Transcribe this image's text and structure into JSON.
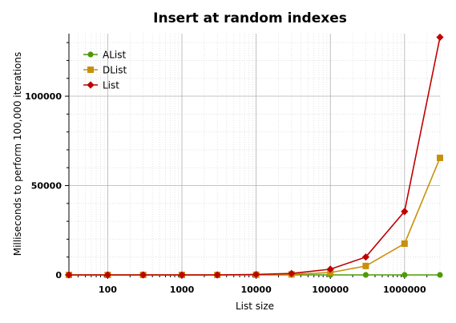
{
  "chart_data": {
    "type": "line",
    "title": "Insert at random indexes",
    "xlabel": "List size",
    "ylabel": "Milliseconds to perform 100,000 iterations",
    "x_scale": "log",
    "xlim": [
      30,
      3000000
    ],
    "ylim": [
      0,
      135000
    ],
    "x_ticks": [
      100,
      1000,
      10000,
      100000,
      1000000
    ],
    "x_tick_labels": [
      "100",
      "1000",
      "10000",
      "100000",
      "1000000"
    ],
    "y_ticks": [
      0,
      50000,
      100000
    ],
    "y_tick_labels": [
      "0",
      "50000",
      "100000"
    ],
    "grid": true,
    "legend_position": "top-left",
    "x": [
      30,
      100,
      300,
      1000,
      3000,
      10000,
      30000,
      100000,
      300000,
      1000000,
      3000000
    ],
    "series": [
      {
        "name": "AList",
        "color": "#4e9a06",
        "marker": "circle",
        "values": [
          0,
          0,
          0,
          0,
          0,
          0,
          0,
          0,
          0,
          0,
          0
        ]
      },
      {
        "name": "DList",
        "color": "#c8900a",
        "marker": "square",
        "values": [
          0,
          0,
          0,
          0,
          0,
          100,
          300,
          1300,
          5000,
          17500,
          65500
        ]
      },
      {
        "name": "List",
        "color": "#c00000",
        "marker": "diamond",
        "values": [
          0,
          0,
          0,
          0,
          0,
          250,
          800,
          3200,
          10000,
          35500,
          133000
        ]
      }
    ]
  }
}
